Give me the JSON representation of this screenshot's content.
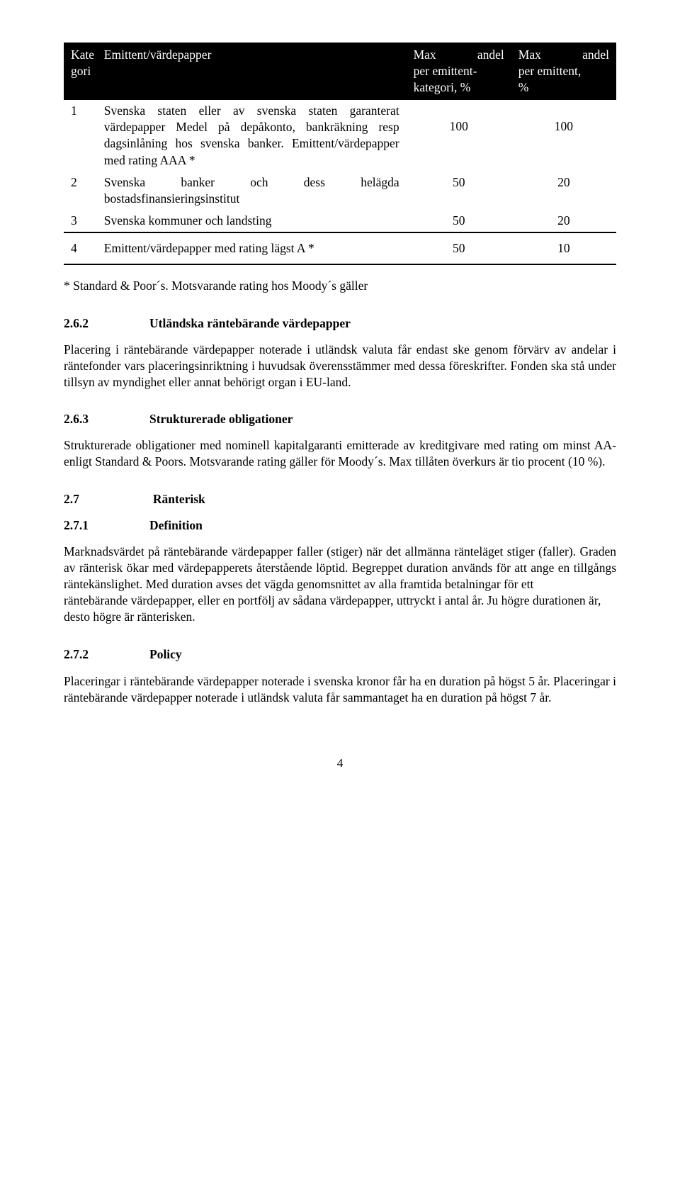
{
  "table": {
    "headers": {
      "col1a": "Kate",
      "col1b": "gori",
      "col2": "Emittent/värdepapper",
      "col3a": "Max andel",
      "col3b": "per emittent-",
      "col3c": "kategori, %",
      "col4a": "Max andel",
      "col4b": "per emittent,",
      "col4c": "%"
    },
    "rows": [
      {
        "idx": "1",
        "desc": "Svenska staten eller av svenska staten garanterat värdepapper\nMedel på depåkonto, bankräkning resp dagsinlåning hos svenska banker.\nEmittent/värdepapper med rating AAA *",
        "v1": "100",
        "v2": "100"
      },
      {
        "idx": "2",
        "desc": "Svenska banker och dess helägda bostadsfinansieringsinstitut",
        "v1": "50",
        "v2": "20"
      },
      {
        "idx": "3",
        "desc": "Svenska kommuner och landsting",
        "v1": "50",
        "v2": "20"
      },
      {
        "idx": "4",
        "desc": "Emittent/värdepapper med rating lägst A *",
        "v1": "50",
        "v2": "10"
      }
    ]
  },
  "footnote": "* Standard & Poor´s. Motsvarande rating hos Moody´s gäller",
  "sections": {
    "s262": {
      "num": "2.6.2",
      "title": "Utländska räntebärande värdepapper",
      "body": "Placering i räntebärande värdepapper noterade i utländsk valuta får endast ske genom förvärv av andelar i räntefonder vars placeringsinriktning i huvudsak överensstämmer med dessa föreskrifter. Fonden ska stå under tillsyn av myndighet eller annat behörigt organ i EU-land."
    },
    "s263": {
      "num": "2.6.3",
      "title": "Strukturerade obligationer",
      "body": "Strukturerade obligationer med nominell kapitalgaranti emitterade av kreditgivare med rating om minst AA- enligt Standard & Poors. Motsvarande rating gäller för Moody´s. Max tillåten överkurs är tio procent (10 %)."
    },
    "s27": {
      "num": "2.7",
      "title": "Ränterisk"
    },
    "s271": {
      "num": "2.7.1",
      "title": "Definition",
      "body1": "Marknadsvärdet på räntebärande värdepapper faller (stiger) när det allmänna ränteläget stiger (faller). Graden av ränterisk ökar med värdepapperets återstående löptid. Begreppet duration används för att ange en tillgångs räntekänslighet. Med duration avses det vägda genomsnittet av alla framtida betalningar för ett",
      "body2": "räntebärande värdepapper, eller en portfölj av sådana värdepapper, uttryckt i antal år. Ju högre durationen är, desto högre är ränterisken."
    },
    "s272": {
      "num": "2.7.2",
      "title": "Policy",
      "body": "Placeringar i räntebärande värdepapper noterade i svenska kronor får ha en duration på högst 5 år. Placeringar i räntebärande värdepapper noterade i utländsk valuta får sammantaget ha en duration på högst 7 år."
    }
  },
  "pagenum": "4"
}
